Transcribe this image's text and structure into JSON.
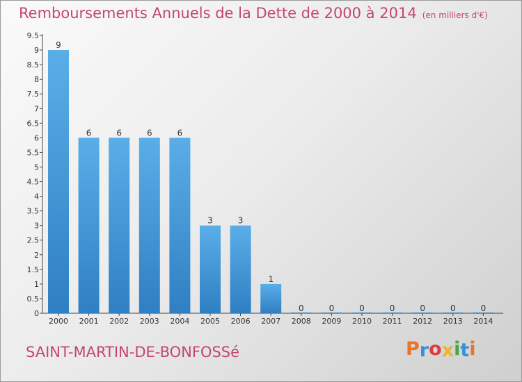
{
  "header": {
    "title": "Remboursements Annuels de la Dette de 2000 à 2014",
    "unit": "(en milliers d'€)"
  },
  "footer": {
    "commune": "SAINT-MARTIN-DE-BONFOSSé",
    "brand": "Proxiti"
  },
  "colors": {
    "accent": "#c4466e",
    "bar_top": "#5aaee8",
    "bar_bottom": "#2f7fc3"
  },
  "chart_data": {
    "type": "bar",
    "title": "Remboursements Annuels de la Dette de 2000 à 2014",
    "xlabel": "",
    "ylabel": "",
    "categories": [
      "2000",
      "2001",
      "2002",
      "2003",
      "2004",
      "2005",
      "2006",
      "2007",
      "2008",
      "2009",
      "2010",
      "2011",
      "2012",
      "2013",
      "2014"
    ],
    "values": [
      9,
      6,
      6,
      6,
      6,
      3,
      3,
      1,
      0,
      0,
      0,
      0,
      0,
      0,
      0
    ],
    "y_ticks": [
      "0",
      "0.5",
      "1",
      "1.5",
      "2",
      "2.5",
      "3",
      "3.5",
      "4",
      "4.5",
      "5",
      "5.5",
      "6",
      "6.5",
      "7",
      "7.5",
      "8",
      "8.5",
      "9",
      "9.5"
    ],
    "ylim": [
      0,
      9.5
    ],
    "grid": false,
    "legend": "none"
  }
}
